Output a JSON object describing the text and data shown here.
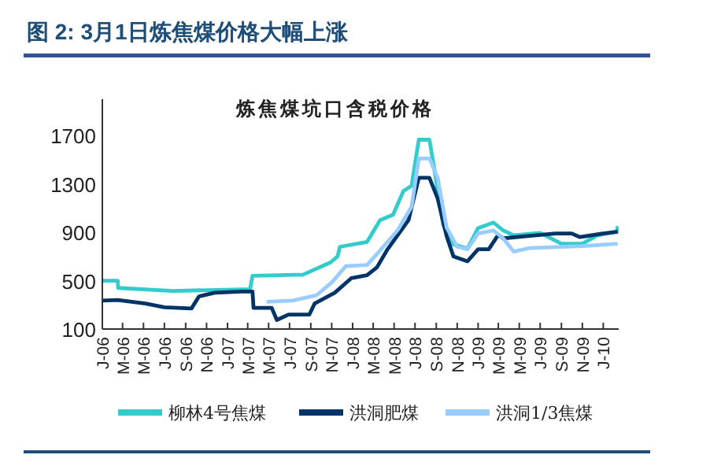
{
  "chart_data": {
    "type": "line",
    "title": "图 2: 3月1日炼焦煤价格大幅上涨",
    "subtitle": "炼焦煤坑口含税价格",
    "xlim": [
      "2006-01-01",
      "2010-02-15"
    ],
    "xticks": [
      {
        "value": "2006-01",
        "label": "J-06"
      },
      {
        "value": "2006-03",
        "label": "M-06"
      },
      {
        "value": "2006-05",
        "label": "M-06"
      },
      {
        "value": "2006-07",
        "label": "J-06"
      },
      {
        "value": "2006-09",
        "label": "S-06"
      },
      {
        "value": "2006-11",
        "label": "N-06"
      },
      {
        "value": "2007-01",
        "label": "J-07"
      },
      {
        "value": "2007-03",
        "label": "M-07"
      },
      {
        "value": "2007-05",
        "label": "M-07"
      },
      {
        "value": "2007-07",
        "label": "J-07"
      },
      {
        "value": "2007-09",
        "label": "S-07"
      },
      {
        "value": "2007-11",
        "label": "N-07"
      },
      {
        "value": "2008-01",
        "label": "J-08"
      },
      {
        "value": "2008-03",
        "label": "M-08"
      },
      {
        "value": "2008-05",
        "label": "M-08"
      },
      {
        "value": "2008-07",
        "label": "J-08"
      },
      {
        "value": "2008-09",
        "label": "S-08"
      },
      {
        "value": "2008-11",
        "label": "N-08"
      },
      {
        "value": "2009-01",
        "label": "J-09"
      },
      {
        "value": "2009-03",
        "label": "M-09"
      },
      {
        "value": "2009-05",
        "label": "M-09"
      },
      {
        "value": "2009-07",
        "label": "J-09"
      },
      {
        "value": "2009-09",
        "label": "S-09"
      },
      {
        "value": "2009-11",
        "label": "N-09"
      },
      {
        "value": "2010-01",
        "label": "J-10"
      }
    ],
    "ylim": [
      100,
      2000
    ],
    "yticks": [
      100,
      500,
      900,
      1300,
      1700
    ],
    "grid": false,
    "legend": "bottom",
    "marker": "none",
    "line_style": "solid",
    "series": [
      {
        "name": "柳林4号焦煤",
        "color": "#33cccc",
        "x": [
          "2006-01-01",
          "2006-02-15",
          "2006-02-16",
          "2006-07-25",
          "2007-03-08",
          "2007-03-15",
          "2007-08-10",
          "2007-10-28",
          "2007-11-18",
          "2007-11-25",
          "2008-02-12",
          "2008-03-21",
          "2008-04-28",
          "2008-05-28",
          "2008-06-21",
          "2008-07-12",
          "2008-08-12",
          "2008-08-28",
          "2008-09-21",
          "2008-10-15",
          "2008-12-01",
          "2009-01-01",
          "2009-02-15",
          "2009-03-15",
          "2009-04-15",
          "2009-07-01",
          "2009-09-01",
          "2009-11-01",
          "2009-12-15",
          "2010-02-10",
          "2010-02-12"
        ],
        "values": [
          500,
          500,
          440,
          415,
          430,
          540,
          550,
          650,
          700,
          780,
          820,
          1000,
          1045,
          1240,
          1285,
          1665,
          1665,
          1390,
          960,
          805,
          765,
          935,
          980,
          915,
          875,
          895,
          805,
          805,
          875,
          905,
          950
        ]
      },
      {
        "name": "洪洞肥煤",
        "color": "#003366",
        "x": [
          "2006-01-01",
          "2006-02-15",
          "2006-05-07",
          "2006-07-01",
          "2006-09-18",
          "2006-10-10",
          "2006-11-25",
          "2007-02-10",
          "2007-03-15",
          "2007-03-18",
          "2007-05-10",
          "2007-05-25",
          "2007-06-28",
          "2007-08-28",
          "2007-09-12",
          "2007-11-10",
          "2007-12-28",
          "2008-02-12",
          "2008-03-12",
          "2008-04-12",
          "2008-06-12",
          "2008-07-12",
          "2008-08-12",
          "2008-09-05",
          "2008-10-01",
          "2008-10-21",
          "2008-12-01",
          "2009-01-01",
          "2009-02-01",
          "2009-03-01",
          "2009-03-15",
          "2009-06-01",
          "2009-08-15",
          "2009-10-01",
          "2009-10-25",
          "2010-01-01",
          "2010-02-12"
        ],
        "values": [
          335,
          340,
          310,
          280,
          270,
          370,
          400,
          410,
          410,
          275,
          275,
          175,
          220,
          220,
          310,
          400,
          520,
          545,
          610,
          760,
          1000,
          1350,
          1350,
          1180,
          870,
          700,
          660,
          760,
          760,
          880,
          850,
          870,
          890,
          890,
          860,
          890,
          905
        ]
      },
      {
        "name": "洪洞1/3焦煤",
        "color": "#99ccff",
        "x": [
          "2007-04-25",
          "2007-07-10",
          "2007-09-18",
          "2007-11-03",
          "2007-12-12",
          "2008-02-12",
          "2008-03-12",
          "2008-05-12",
          "2008-06-21",
          "2008-07-12",
          "2008-08-12",
          "2008-09-05",
          "2008-10-01",
          "2008-11-01",
          "2008-12-01",
          "2009-01-01",
          "2009-02-15",
          "2009-03-15",
          "2009-04-15",
          "2009-06-01",
          "2009-11-01",
          "2010-02-12"
        ],
        "values": [
          325,
          335,
          380,
          490,
          620,
          630,
          720,
          920,
          1110,
          1510,
          1510,
          1350,
          940,
          780,
          760,
          890,
          915,
          850,
          740,
          770,
          785,
          805
        ]
      }
    ]
  }
}
